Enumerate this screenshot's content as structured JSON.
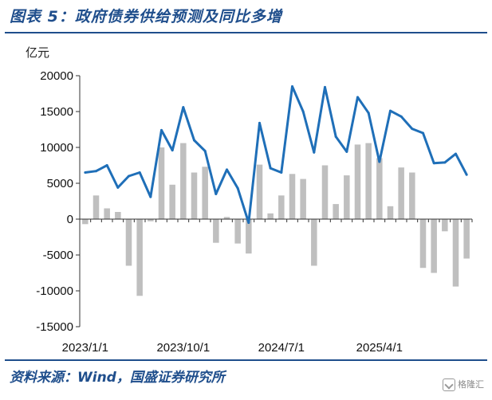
{
  "header": {
    "title": "图表 5：政府债券供给预测及同比多增"
  },
  "footer": {
    "source": "资料来源：Wind，国盛证券研究所",
    "watermark": "格隆汇"
  },
  "chart_data": {
    "type": "bar+line",
    "unit_label": "亿元",
    "ylim": [
      -15000,
      20000
    ],
    "yticks": [
      20000,
      15000,
      10000,
      5000,
      0,
      -5000,
      -10000,
      -15000
    ],
    "x_tick_labels": [
      "2023/1/1",
      "2023/10/1",
      "2024/7/1",
      "2025/4/1"
    ],
    "x_tick_indices": [
      0,
      9,
      18,
      27
    ],
    "categories": [
      "2023-01",
      "2023-02",
      "2023-03",
      "2023-04",
      "2023-05",
      "2023-06",
      "2023-07",
      "2023-08",
      "2023-09",
      "2023-10",
      "2023-11",
      "2023-12",
      "2024-01",
      "2024-02",
      "2024-03",
      "2024-04",
      "2024-05",
      "2024-06",
      "2024-07",
      "2024-08",
      "2024-09",
      "2024-10",
      "2024-11",
      "2024-12",
      "2025-01",
      "2025-02",
      "2025-03",
      "2025-04",
      "2025-05",
      "2025-06",
      "2025-07",
      "2025-08",
      "2025-09",
      "2025-10",
      "2025-11",
      "2025-12"
    ],
    "series": [
      {
        "type": "bar",
        "color": "#bfbfbf",
        "values": [
          -700,
          3300,
          1500,
          1000,
          -6500,
          -10700,
          -300,
          10000,
          4800,
          10600,
          6500,
          7300,
          -3300,
          300,
          -3400,
          -4800,
          7600,
          800,
          3300,
          6300,
          5600,
          -6500,
          7500,
          2100,
          6100,
          10400,
          10600,
          8500,
          1800,
          7200,
          6500,
          -6800,
          -7500,
          -1700,
          -9400,
          -5500
        ]
      },
      {
        "type": "line",
        "color": "#1f6fb8",
        "values": [
          6500,
          6700,
          7500,
          4400,
          6000,
          6500,
          3100,
          12400,
          9600,
          15600,
          11000,
          9500,
          3500,
          6900,
          4300,
          -500,
          13400,
          7100,
          6500,
          18500,
          15000,
          9300,
          18400,
          11500,
          9400,
          17000,
          14800,
          8000,
          15100,
          14300,
          12600,
          12000,
          7800,
          7900,
          9100,
          6200
        ]
      }
    ],
    "grid": false
  }
}
